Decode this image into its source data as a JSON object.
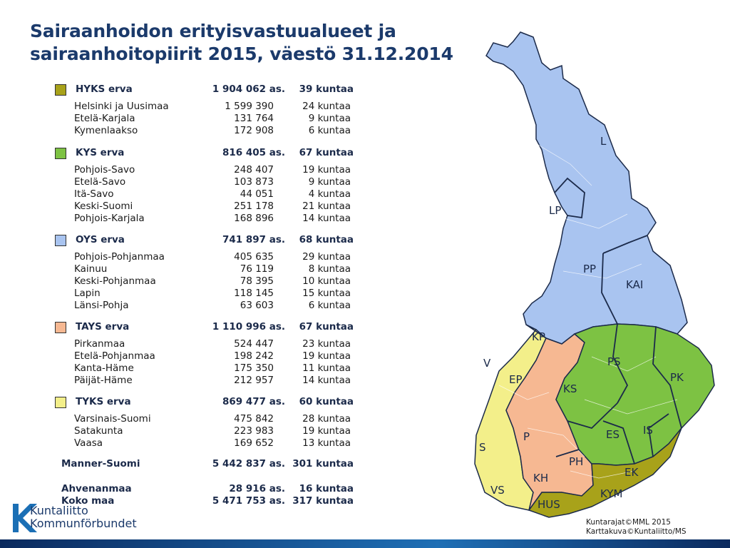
{
  "title_line1": "Sairaanhoidon erityisvastuualueet ja",
  "title_line2": "sairaanhoitopiirit 2015, väestö 31.12.2014",
  "groups": [
    {
      "name": "HYKS erva",
      "population": "1 904 062 as.",
      "municipalities": "39 kuntaa",
      "color": "#a8a21a",
      "districts": [
        [
          "Helsinki ja Uusimaa",
          "1 599 390",
          "24 kuntaa"
        ],
        [
          "Etelä-Karjala",
          "131 764",
          "9 kuntaa"
        ],
        [
          "Kymenlaakso",
          "172 908",
          "6 kuntaa"
        ]
      ]
    },
    {
      "name": "KYS erva",
      "population": "816 405 as.",
      "municipalities": "67 kuntaa",
      "color": "#7dc243",
      "districts": [
        [
          "Pohjois-Savo",
          "248 407",
          "19 kuntaa"
        ],
        [
          "Etelä-Savo",
          "103 873",
          "9 kuntaa"
        ],
        [
          "Itä-Savo",
          "44 051",
          "4 kuntaa"
        ],
        [
          "Keski-Suomi",
          "251 178",
          "21 kuntaa"
        ],
        [
          "Pohjois-Karjala",
          "168 896",
          "14 kuntaa"
        ]
      ]
    },
    {
      "name": "OYS erva",
      "population": "741 897 as.",
      "municipalities": "68 kuntaa",
      "color": "#a9c4f0",
      "districts": [
        [
          "Pohjois-Pohjanmaa",
          "405 635",
          "29 kuntaa"
        ],
        [
          "Kainuu",
          "76 119",
          "8 kuntaa"
        ],
        [
          "Keski-Pohjanmaa",
          "78 395",
          "10 kuntaa"
        ],
        [
          "Lapin",
          "118 145",
          "15 kuntaa"
        ],
        [
          "Länsi-Pohja",
          "63 603",
          "6 kuntaa"
        ]
      ]
    },
    {
      "name": "TAYS erva",
      "population": "1 110 996 as.",
      "municipalities": "67 kuntaa",
      "color": "#f6b892",
      "districts": [
        [
          "Pirkanmaa",
          "524 447",
          "23 kuntaa"
        ],
        [
          "Etelä-Pohjanmaa",
          "198 242",
          "19 kuntaa"
        ],
        [
          "Kanta-Häme",
          "175 350",
          "11 kuntaa"
        ],
        [
          "Päijät-Häme",
          "212 957",
          "14 kuntaa"
        ]
      ]
    },
    {
      "name": "TYKS erva",
      "population": "869 477 as.",
      "municipalities": "60 kuntaa",
      "color": "#f3ef8a",
      "districts": [
        [
          "Varsinais-Suomi",
          "475 842",
          "28 kuntaa"
        ],
        [
          "Satakunta",
          "223 983",
          "19 kuntaa"
        ],
        [
          "Vaasa",
          "169 652",
          "13 kuntaa"
        ]
      ]
    }
  ],
  "totals": [
    [
      "Manner-Suomi",
      "5 442 837 as.",
      "301 kuntaa"
    ],
    [
      "Ahvenanmaa",
      "28 916 as.",
      "16 kuntaa"
    ],
    [
      "Koko maa",
      "5 471 753 as.",
      "317 kuntaa"
    ]
  ],
  "map_labels": [
    "L",
    "LP",
    "PP",
    "KAI",
    "KP",
    "V",
    "EP",
    "PS",
    "PK",
    "KS",
    "P",
    "ES",
    "IS",
    "S",
    "PH",
    "EK",
    "KH",
    "VS",
    "KYM",
    "HUS"
  ],
  "credits_line1": "Kuntarajat©MML 2015",
  "credits_line2": "Karttakuva©Kuntaliitto/MS",
  "logo_line1": "Kuntaliitto",
  "logo_line2": "Kommunförbundet",
  "colors": {
    "title": "#1b3a6b",
    "hyks": "#a8a21a",
    "kys": "#7dc243",
    "oys": "#a9c4f0",
    "tays": "#f6b892",
    "tyks": "#f3ef8a"
  }
}
